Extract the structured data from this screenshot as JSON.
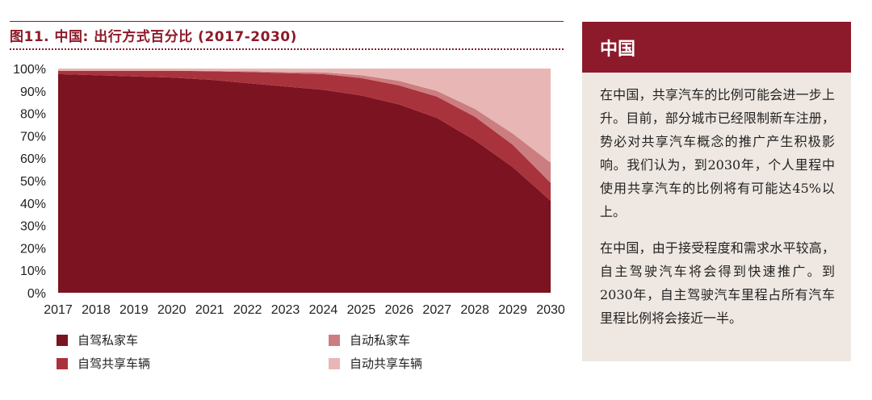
{
  "figure": {
    "title": "图11. 中国: 出行方式百分比 (2017-2030)"
  },
  "colors": {
    "private_drive": "#7b1320",
    "shared_drive": "#a9333d",
    "private_auto": "#cc7d80",
    "shared_auto": "#e8b7b5",
    "accent": "#8c1a2a",
    "panel_bg": "#efe8e2"
  },
  "chart_data": {
    "type": "area",
    "stacked": true,
    "x": [
      2017,
      2018,
      2019,
      2020,
      2021,
      2022,
      2023,
      2024,
      2025,
      2026,
      2027,
      2028,
      2029,
      2030
    ],
    "ylim": [
      0,
      100
    ],
    "yticks": [
      "0%",
      "10%",
      "20%",
      "30%",
      "40%",
      "50%",
      "60%",
      "70%",
      "80%",
      "90%",
      "100%"
    ],
    "series": [
      {
        "name": "自驾私家车",
        "values": [
          97.5,
          97,
          96.5,
          96,
          95,
          93.5,
          92,
          90.5,
          88,
          84,
          78,
          68,
          56,
          41
        ]
      },
      {
        "name": "自驾共享车辆",
        "values": [
          1.5,
          2,
          2.5,
          3,
          3.8,
          5,
          6,
          7,
          7.8,
          8.5,
          9.5,
          10.5,
          10,
          8
        ]
      },
      {
        "name": "自动私家车",
        "values": [
          0,
          0,
          0,
          0,
          0.1,
          0.3,
          0.5,
          0.8,
          1.2,
          2,
          2.5,
          3.5,
          5,
          9
        ]
      },
      {
        "name": "自动共享车辆",
        "values": [
          1,
          1,
          1,
          1,
          1.1,
          1.2,
          1.5,
          1.7,
          3,
          5.5,
          10,
          18,
          29,
          42
        ]
      }
    ]
  },
  "legend": {
    "private_drive": "自驾私家车",
    "shared_drive": "自驾共享车辆",
    "private_auto": "自动私家车",
    "shared_auto": "自动共享车辆"
  },
  "sidebar": {
    "heading": "中国",
    "paragraph1": "在中国，共享汽车的比例可能会进一步上升。目前，部分城市已经限制新车注册，势必对共享汽车概念的推广产生积极影响。我们认为，到2030年，个人里程中使用共享汽车的比例将有可能达45%以上。",
    "paragraph2": "在中国，由于接受程度和需求水平较高，自主驾驶汽车将会得到快速推广。到2030年，自主驾驶汽车里程占所有汽车里程比例将会接近一半。"
  }
}
